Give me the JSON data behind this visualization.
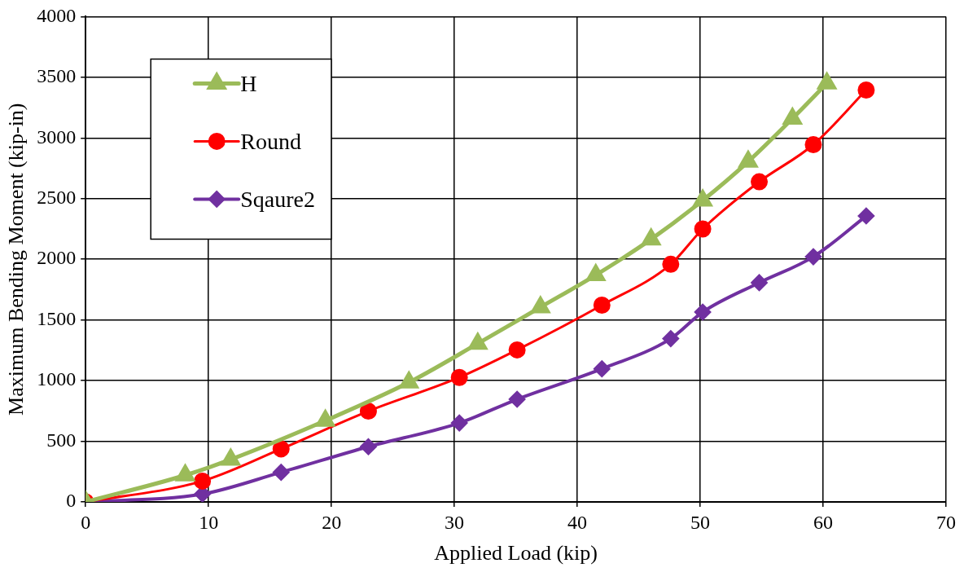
{
  "chart_data": {
    "type": "line",
    "xlabel": "Applied Load (kip)",
    "ylabel": "Maximum Bending Moment (kip-in)",
    "xlim": [
      0,
      70
    ],
    "xticks": [
      0,
      10,
      20,
      30,
      40,
      50,
      60,
      70
    ],
    "ylim": [
      0,
      4000
    ],
    "yticks": [
      0,
      500,
      1000,
      1500,
      2000,
      2500,
      3000,
      3500,
      4000
    ],
    "grid": true,
    "legend": "top left",
    "line_style": "solid",
    "series": [
      {
        "name": "H",
        "color": "#9bbb59",
        "marker": "triangle",
        "x": [
          0,
          8.1,
          11.8,
          19.5,
          26.3,
          31.9,
          37.0,
          41.5,
          46.0,
          50.2,
          53.9,
          57.5,
          60.3
        ],
        "values": [
          0,
          220,
          350,
          670,
          985,
          1305,
          1605,
          1870,
          2165,
          2485,
          2805,
          3160,
          3450
        ]
      },
      {
        "name": "Round",
        "color": "#ff0000",
        "marker": "circle",
        "x": [
          0,
          9.5,
          15.9,
          23.0,
          30.4,
          35.1,
          42.0,
          47.6,
          50.2,
          54.8,
          59.2,
          63.5
        ],
        "values": [
          0,
          172,
          437,
          748,
          1026,
          1253,
          1622,
          1959,
          2250,
          2639,
          2945,
          3395
        ]
      },
      {
        "name": "Sqaure2",
        "color": "#7030a0",
        "marker": "diamond",
        "x": [
          0,
          9.5,
          15.9,
          23.0,
          30.4,
          35.1,
          42.0,
          47.6,
          50.2,
          54.8,
          59.2,
          63.5
        ],
        "values": [
          0,
          65,
          244,
          455,
          651,
          846,
          1097,
          1346,
          1565,
          1807,
          2021,
          2357
        ]
      }
    ]
  }
}
